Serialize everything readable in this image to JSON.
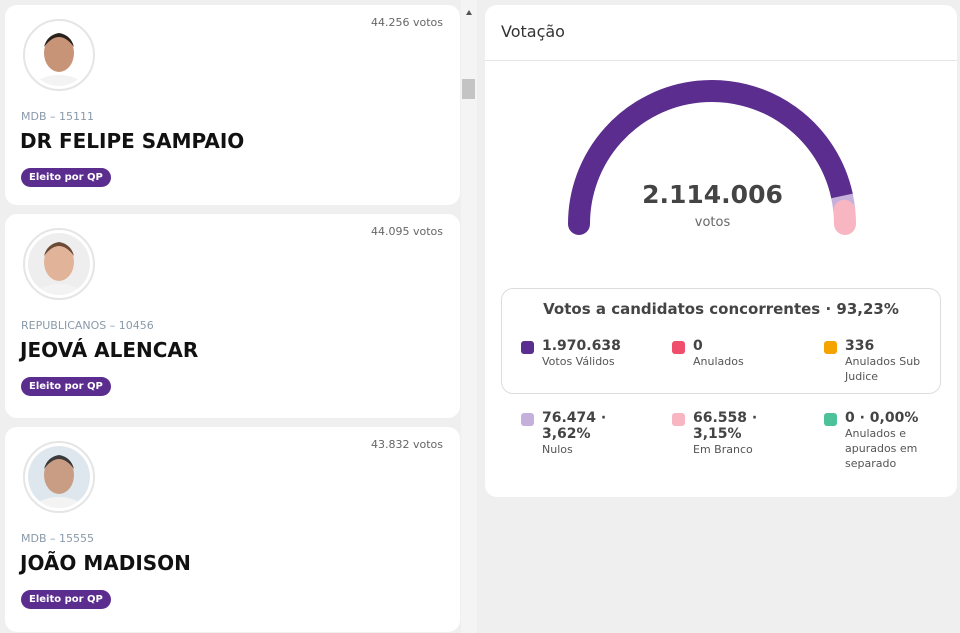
{
  "candidates": [
    {
      "votes": "44.256 votos",
      "party": "MDB – 15111",
      "name": "DR FELIPE SAMPAIO",
      "badge": "Eleito por QP"
    },
    {
      "votes": "44.095 votos",
      "party": "REPUBLICANOS – 10456",
      "name": "JEOVÁ ALENCAR",
      "badge": "Eleito por QP"
    },
    {
      "votes": "43.832 votos",
      "party": "MDB – 15555",
      "name": "JOÃO MADISON",
      "badge": "Eleito por QP"
    }
  ],
  "votacao": {
    "title": "Votação",
    "total": "2.114.006",
    "total_unit": "votos",
    "concorrentes": "Votos a candidatos concorrentes · 93,23%",
    "items": [
      {
        "value": "1.970.638",
        "label": "Votos Válidos",
        "color": "#5b2d8e"
      },
      {
        "value": "0",
        "label": "Anulados",
        "color": "#ef4f6a"
      },
      {
        "value": "336",
        "label": "Anulados Sub Judice",
        "color": "#f5a300"
      }
    ],
    "others": [
      {
        "value": "76.474 · 3,62%",
        "label": "Nulos",
        "color": "#c5b0dc"
      },
      {
        "value": "66.558 · 3,15%",
        "label": "Em Branco",
        "color": "#f7b6c2"
      },
      {
        "value": "0 · 0,00%",
        "label": "Anulados e apurados em separado",
        "color": "#4dc29a"
      }
    ]
  }
}
